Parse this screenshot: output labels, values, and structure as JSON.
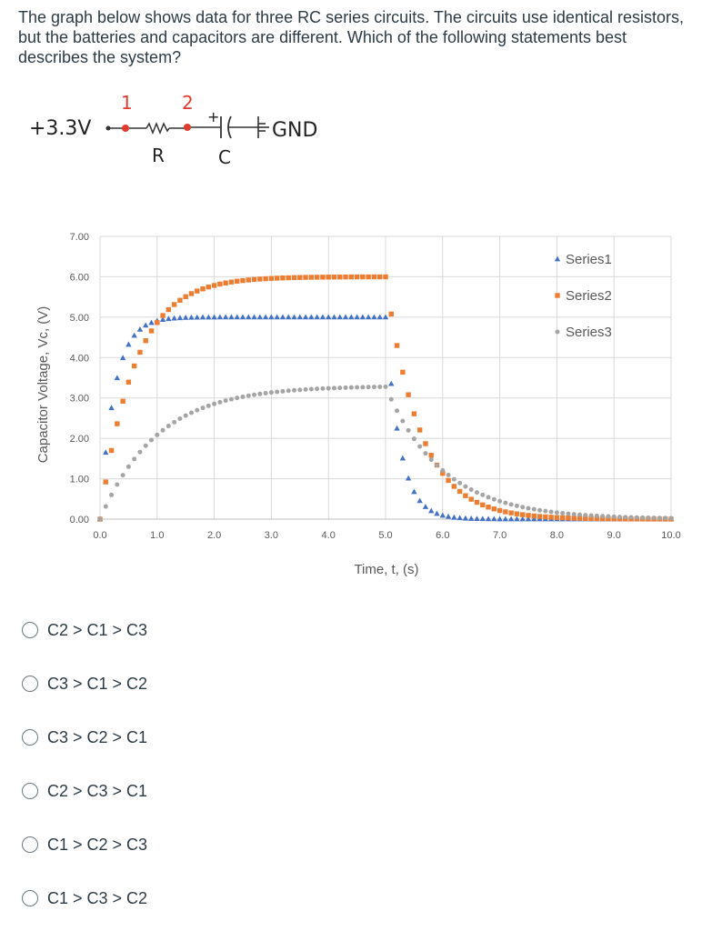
{
  "question": "The graph below shows data for three RC series circuits. The circuits use identical resistors, but the batteries and capacitors are different. Which of the following statements best describes the system?",
  "circuit": {
    "source_label": "+3.3V",
    "node1_label": "1",
    "node2_label": "2",
    "resistor_label": "R",
    "capacitor_label": "C",
    "capacitor_polarity": "+",
    "ground_label": "GND",
    "node_color": "#e03b2e",
    "node2_label_color": "#e03b2e"
  },
  "chart_data": {
    "type": "scatter",
    "xlabel": "Time, t, (s)",
    "ylabel": "Capacitor Voltage, Vc, (V)",
    "xlim": [
      0,
      10
    ],
    "ylim": [
      0,
      7
    ],
    "xticks": [
      "0.0",
      "1.0",
      "2.0",
      "3.0",
      "4.0",
      "5.0",
      "6.0",
      "7.0",
      "8.0",
      "9.0",
      "10.0"
    ],
    "yticks": [
      "0.00",
      "1.00",
      "2.00",
      "3.00",
      "4.00",
      "5.00",
      "6.00",
      "7.00"
    ],
    "grid": true,
    "legend": "right",
    "sample_interval": 0.1,
    "switch_time": 5.0,
    "series": [
      {
        "name": "Series1",
        "marker": "triangle",
        "color": "#4472c4",
        "V": 5.0,
        "tau": 0.25
      },
      {
        "name": "Series2",
        "marker": "square",
        "color": "#ed7d31",
        "V": 6.0,
        "tau": 0.6
      },
      {
        "name": "Series3",
        "marker": "circle",
        "color": "#a5a5a5",
        "V": 3.3,
        "tau": 1.0
      }
    ]
  },
  "options": [
    {
      "label": "C2 > C1 > C3"
    },
    {
      "label": "C3 > C1 > C2"
    },
    {
      "label": "C3 > C2 > C1"
    },
    {
      "label": "C2 > C3 > C1"
    },
    {
      "label": "C1 > C2 > C3"
    },
    {
      "label": "C1 > C3 > C2"
    }
  ]
}
